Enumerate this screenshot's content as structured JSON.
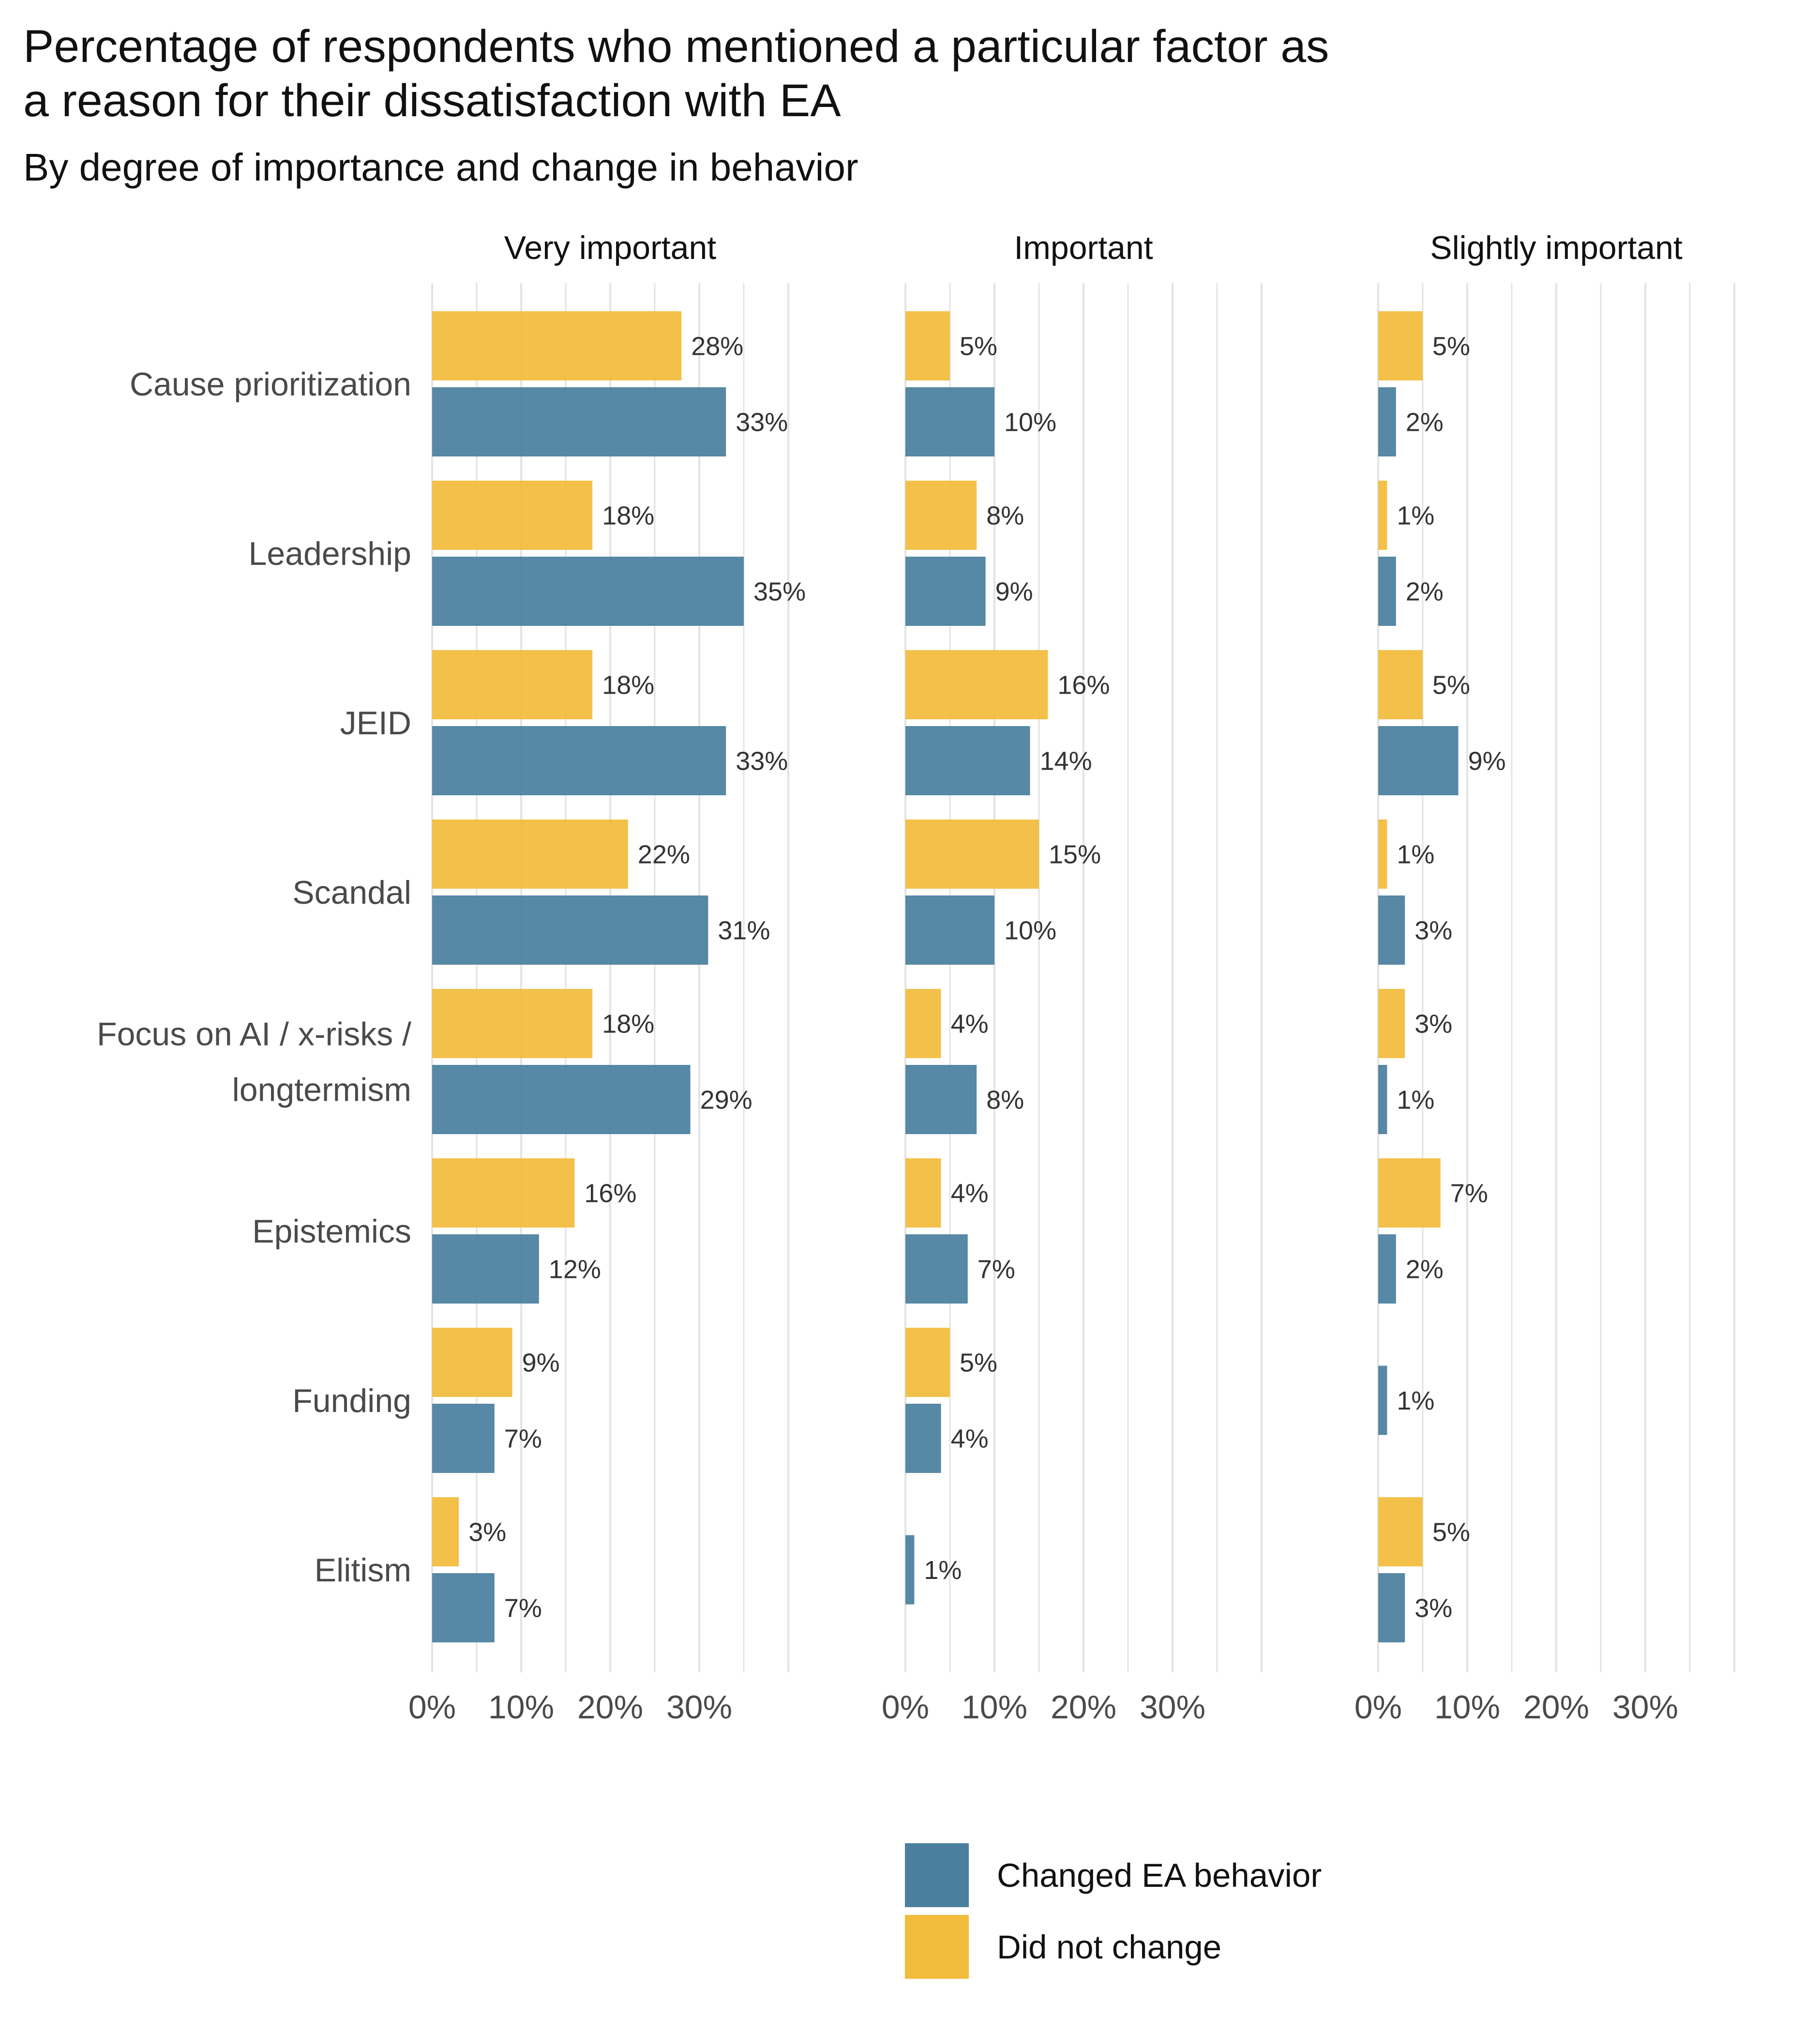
{
  "chart_data": {
    "type": "bar",
    "orientation": "horizontal",
    "title": "Percentage of respondents who mentioned a particular factor as\na reason for their dissatisfaction with EA",
    "subtitle": "By degree of importance and change in behavior",
    "categories": [
      "Cause prioritization",
      "Leadership",
      "JEID",
      "Scandal",
      "Focus on AI / x-risks /\nlongtermism",
      "Epistemics",
      "Funding",
      "Elitism"
    ],
    "facets": [
      "Very important",
      "Important",
      "Slightly important"
    ],
    "series": [
      {
        "name": "Did not change",
        "color": "#F2BC3C",
        "values": [
          [
            28,
            18,
            18,
            22,
            18,
            16,
            9,
            3
          ],
          [
            5,
            8,
            16,
            15,
            4,
            4,
            5,
            null
          ],
          [
            5,
            1,
            5,
            1,
            3,
            7,
            null,
            5
          ]
        ]
      },
      {
        "name": "Changed EA behavior",
        "color": "#4A7F9E",
        "values": [
          [
            33,
            35,
            33,
            31,
            29,
            12,
            7,
            7
          ],
          [
            10,
            9,
            14,
            10,
            8,
            7,
            4,
            1
          ],
          [
            2,
            2,
            9,
            3,
            1,
            2,
            1,
            3
          ]
        ]
      }
    ],
    "value_labels": [
      [
        [
          "28%",
          "33%"
        ],
        [
          "18%",
          "35%"
        ],
        [
          "18%",
          "33%"
        ],
        [
          "22%",
          "31%"
        ],
        [
          "18%",
          "29%"
        ],
        [
          "16%",
          "12%"
        ],
        [
          "9%",
          "7%"
        ],
        [
          "3%",
          "7%"
        ]
      ],
      [
        [
          "5%",
          "10%"
        ],
        [
          "8%",
          "9%"
        ],
        [
          "16%",
          "14%"
        ],
        [
          "15%",
          "10%"
        ],
        [
          "4%",
          "8%"
        ],
        [
          "4%",
          "7%"
        ],
        [
          "5%",
          "4%"
        ],
        [
          null,
          "1%"
        ]
      ],
      [
        [
          "5%",
          "2%"
        ],
        [
          "1%",
          "2%"
        ],
        [
          "5%",
          "9%"
        ],
        [
          "1%",
          "3%"
        ],
        [
          "3%",
          "1%"
        ],
        [
          "7%",
          "2%"
        ],
        [
          null,
          "1%"
        ],
        [
          "5%",
          "3%"
        ]
      ]
    ],
    "xaxis_ticks": [
      0,
      10,
      20,
      30
    ],
    "xaxis_tick_labels": [
      "0%",
      "10%",
      "20%",
      "30%"
    ],
    "xlim": [
      0,
      40
    ],
    "grid": true,
    "legend": {
      "position": "bottom",
      "items": [
        {
          "label": "Changed EA behavior",
          "color": "#4A7F9E"
        },
        {
          "label": "Did not change",
          "color": "#F2BC3C"
        }
      ]
    }
  }
}
